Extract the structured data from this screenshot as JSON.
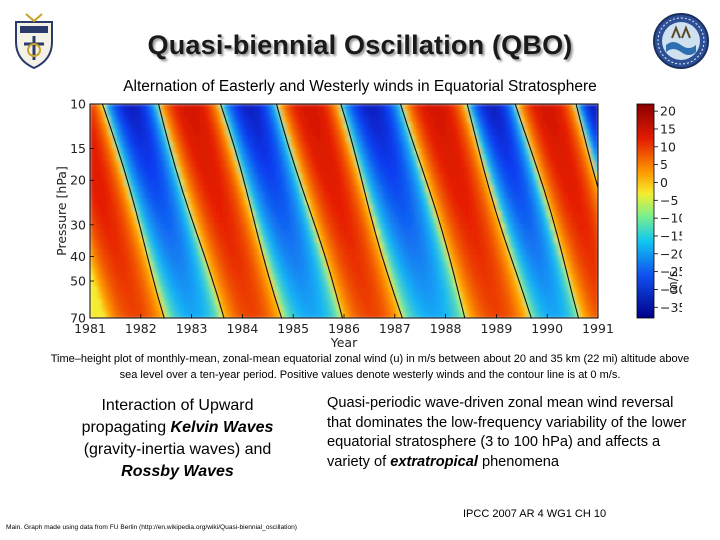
{
  "title": "Quasi-biennial Oscillation (QBO)",
  "subtitle": "Alternation of  Easterly and Westerly winds in Equatorial Stratosphere",
  "caption": "Time–height plot of monthly-mean, zonal-mean equatorial zonal wind (u) in m/s between about 20 and 35 km (22 mi) altitude above sea level over a ten-year period. Positive values denote westerly winds and the contour line is at 0 m/s.",
  "left_text": {
    "line1": "Interaction of Upward propagating",
    "kelvin": "Kelvin Waves",
    "line2": "(gravity-inertia waves) and",
    "rossby": "Rossby Waves"
  },
  "right_text": {
    "body": "Quasi-periodic wave-driven zonal mean wind reversal that dominates the low-frequency variability of the lower equatorial stratosphere (3 to 100 hPa) and affects a variety of",
    "em": "extratropical",
    "tail": "phenomena"
  },
  "source_credit": "IPCC 2007 AR 4 WG1 CH 10",
  "footnote": "Main. Graph made using data from FU Berlin (http://en.wikipedia.org/wiki/Quasi-biennial_oscillation)",
  "logos": {
    "left": "naval-academy-crest",
    "right": "oceanography-seal"
  },
  "colors": {
    "easterly": "#1010c8",
    "westerly": "#d01010",
    "zero": "#f0e030"
  },
  "chart_data": {
    "type": "heatmap",
    "xlabel": "Year",
    "ylabel": "Pressure [hPa]",
    "x_ticks": [
      "1981",
      "1982",
      "1983",
      "1984",
      "1985",
      "1986",
      "1987",
      "1988",
      "1989",
      "1990",
      "1991"
    ],
    "y_ticks": [
      "10",
      "15",
      "20",
      "30",
      "40",
      "50",
      "70"
    ],
    "xlim": [
      1981.0,
      1991.0
    ],
    "ylim": [
      70,
      10
    ],
    "y_scale": "log",
    "colorbar": {
      "label": "m/s",
      "ticks": [
        "20",
        "15",
        "10",
        "5",
        "0",
        "−5",
        "−10",
        "−15",
        "−20",
        "−25",
        "−30",
        "−35"
      ],
      "range": [
        -38,
        22
      ]
    },
    "contour_level": 0,
    "easterly_onsets_at_10hPa": [
      1981.25,
      1983.55,
      1985.9,
      1988.4,
      1990.55
    ],
    "westerly_onsets_at_10hPa": [
      1982.35,
      1984.7,
      1987.15,
      1989.4,
      1991.3
    ],
    "descent_years_10_to_70hPa": 1.25,
    "peak_westerly_ms": 15,
    "peak_easterly_ms": -35
  }
}
